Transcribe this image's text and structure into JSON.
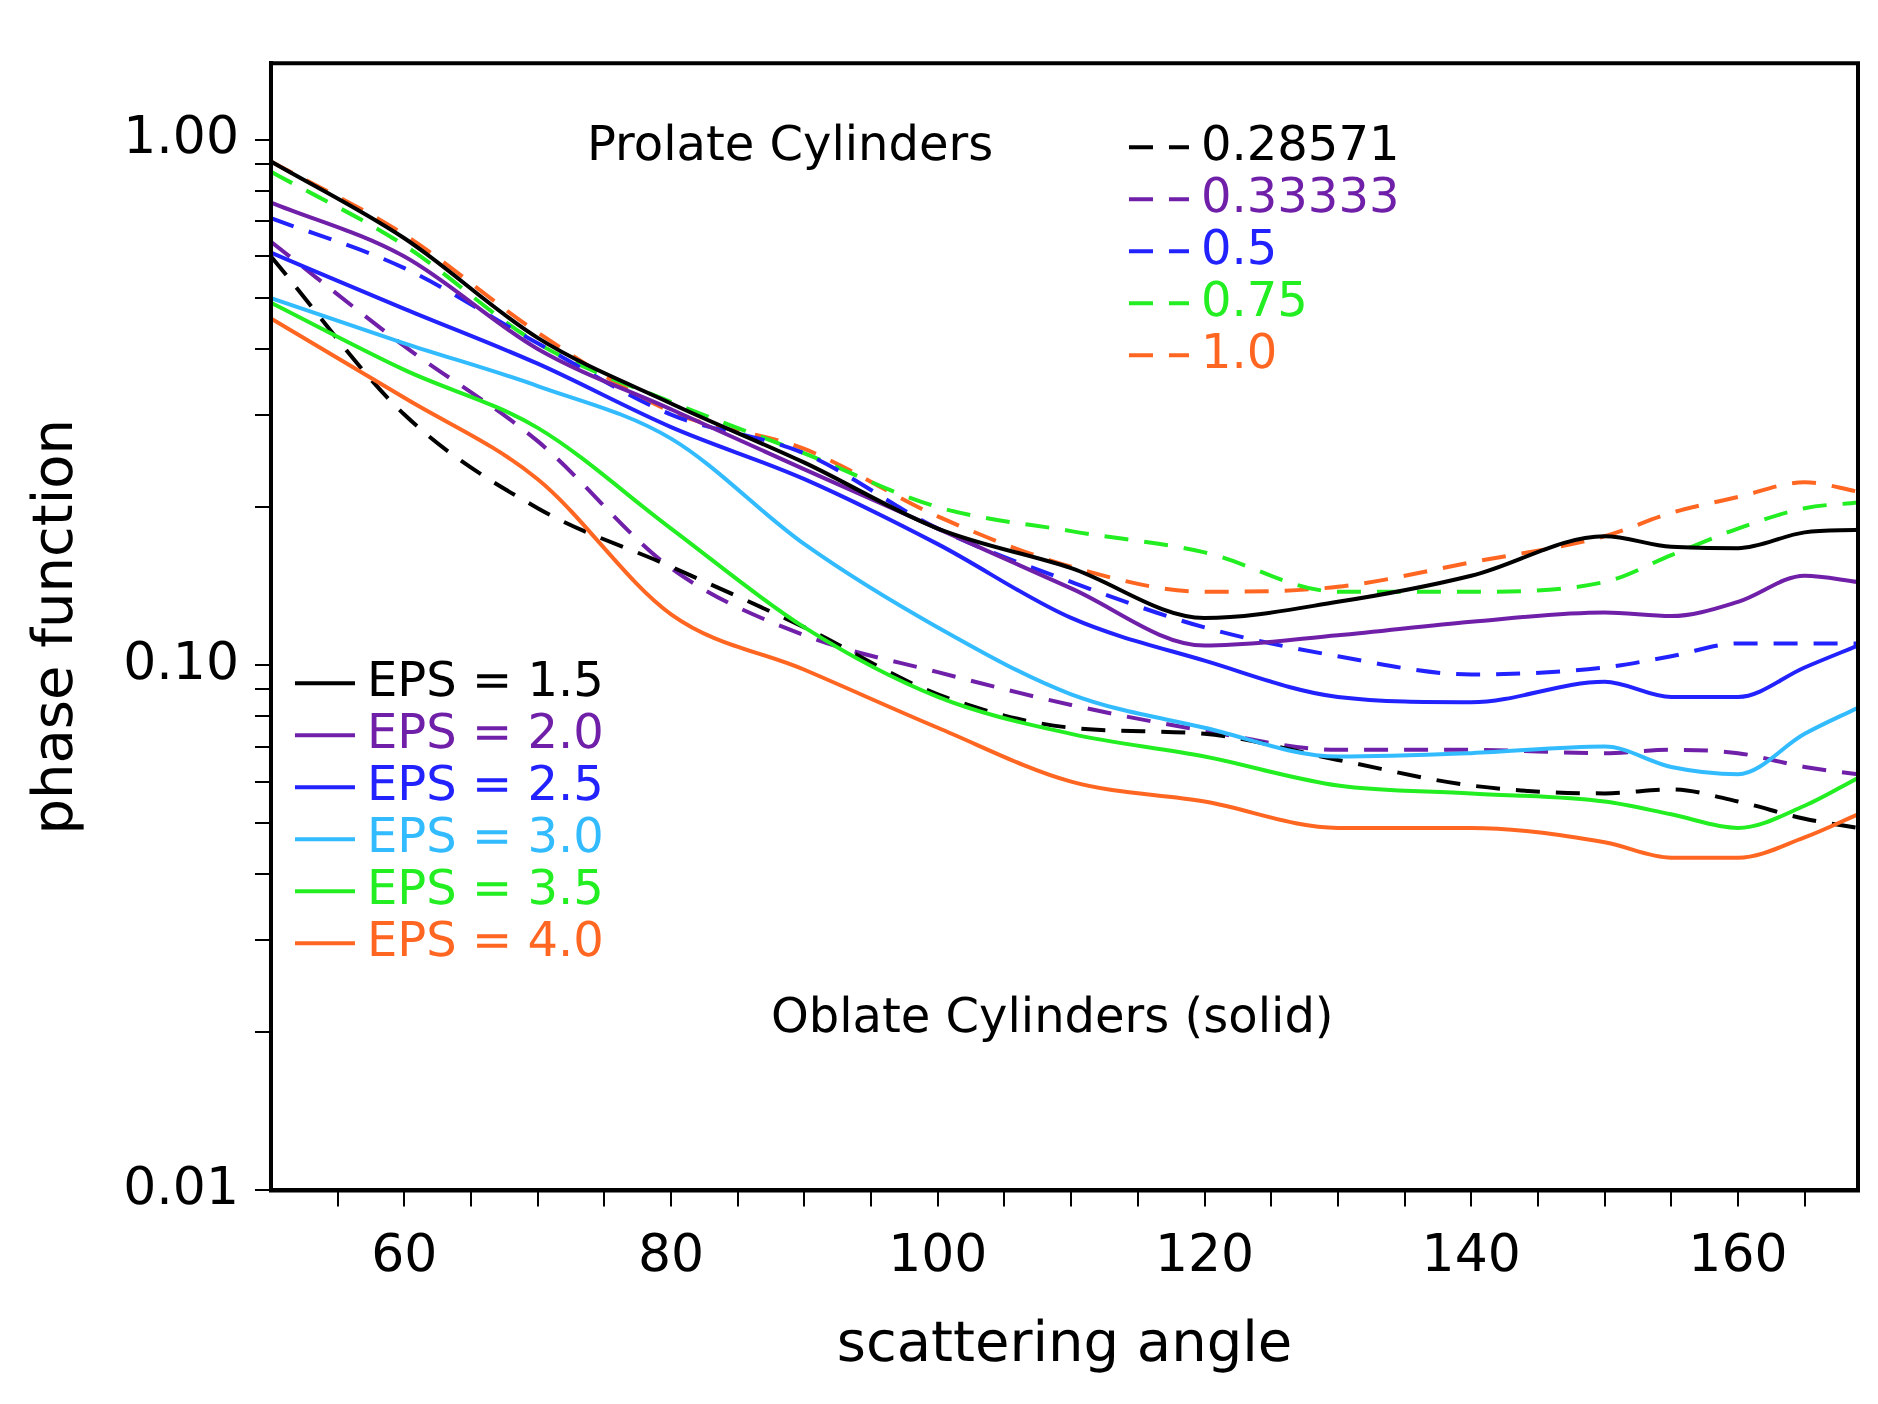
{
  "chart_data": {
    "type": "line",
    "xlabel": "scattering angle",
    "ylabel": "phase function",
    "x": [
      50,
      60,
      70,
      80,
      90,
      100,
      110,
      120,
      130,
      140,
      150,
      155,
      160,
      165,
      169
    ],
    "series": [
      {
        "name": "EPS = 1.5",
        "color": "#000000",
        "line_style": "solid",
        "values": [
          0.91,
          0.65,
          0.42,
          0.315,
          0.243,
          0.182,
          0.153,
          0.123,
          0.132,
          0.148,
          0.176,
          0.168,
          0.167,
          0.179,
          0.181
        ]
      },
      {
        "name": "EPS = 2.0",
        "color": "#7020a8",
        "line_style": "solid",
        "values": [
          0.76,
          0.6,
          0.4,
          0.307,
          0.236,
          0.182,
          0.14,
          0.109,
          0.114,
          0.121,
          0.126,
          0.124,
          0.132,
          0.148,
          0.144
        ]
      },
      {
        "name": "EPS = 2.5",
        "color": "#2222ff",
        "line_style": "solid",
        "values": [
          0.61,
          0.477,
          0.375,
          0.284,
          0.226,
          0.17,
          0.123,
          0.102,
          0.087,
          0.085,
          0.093,
          0.087,
          0.087,
          0.099,
          0.109
        ]
      },
      {
        "name": "EPS = 3.0",
        "color": "#33bbff",
        "line_style": "solid",
        "values": [
          0.5,
          0.41,
          0.34,
          0.27,
          0.17,
          0.118,
          0.088,
          0.076,
          0.067,
          0.068,
          0.07,
          0.064,
          0.062,
          0.074,
          0.083
        ]
      },
      {
        "name": "EPS = 3.5",
        "color": "#22ee22",
        "line_style": "solid",
        "values": [
          0.49,
          0.365,
          0.283,
          0.182,
          0.118,
          0.087,
          0.074,
          0.067,
          0.059,
          0.057,
          0.055,
          0.052,
          0.049,
          0.054,
          0.061
        ]
      },
      {
        "name": "EPS = 4.0",
        "color": "#ff6622",
        "line_style": "solid",
        "values": [
          0.457,
          0.323,
          0.226,
          0.125,
          0.098,
          0.076,
          0.06,
          0.055,
          0.049,
          0.049,
          0.046,
          0.043,
          0.043,
          0.047,
          0.052
        ]
      },
      {
        "name": "0.28571",
        "color": "#000000",
        "line_style": "dashed",
        "values": [
          0.6,
          0.3,
          0.199,
          0.154,
          0.118,
          0.088,
          0.076,
          0.074,
          0.066,
          0.059,
          0.057,
          0.058,
          0.055,
          0.051,
          0.049
        ]
      },
      {
        "name": "0.33333",
        "color": "#7020a8",
        "line_style": "dashed",
        "values": [
          0.64,
          0.405,
          0.267,
          0.153,
          0.114,
          0.097,
          0.084,
          0.075,
          0.069,
          0.069,
          0.068,
          0.069,
          0.068,
          0.064,
          0.062
        ]
      },
      {
        "name": "0.5",
        "color": "#2222ff",
        "line_style": "dashed",
        "values": [
          0.71,
          0.57,
          0.41,
          0.3,
          0.253,
          0.182,
          0.144,
          0.118,
          0.104,
          0.096,
          0.099,
          0.104,
          0.11,
          0.11,
          0.11
        ]
      },
      {
        "name": "0.75",
        "color": "#22ee22",
        "line_style": "dashed",
        "values": [
          0.87,
          0.63,
          0.41,
          0.317,
          0.253,
          0.2,
          0.18,
          0.164,
          0.138,
          0.138,
          0.144,
          0.162,
          0.182,
          0.199,
          0.204
        ]
      },
      {
        "name": "1.0",
        "color": "#ff6622",
        "line_style": "dashed",
        "values": [
          0.91,
          0.66,
          0.43,
          0.304,
          0.258,
          0.192,
          0.154,
          0.138,
          0.141,
          0.157,
          0.176,
          0.195,
          0.209,
          0.223,
          0.214
        ]
      }
    ],
    "annotations": [
      "Prolate Cylinders",
      "Oblate Cylinders (solid)"
    ],
    "log": "y",
    "grid": false,
    "legend": "top",
    "marker": "none",
    "xlim": [
      50,
      169
    ],
    "ylim": [
      0.01,
      1.4
    ],
    "xticks": [
      {
        "value": 55,
        "label": null
      },
      60,
      {
        "value": 65,
        "label": null
      },
      {
        "value": 70,
        "label": null
      },
      {
        "value": 75,
        "label": null
      },
      80,
      {
        "value": 85,
        "label": null
      },
      {
        "value": 90,
        "label": null
      },
      {
        "value": 95,
        "label": null
      },
      100,
      {
        "value": 105,
        "label": null
      },
      {
        "value": 110,
        "label": null
      },
      {
        "value": 115,
        "label": null
      },
      120,
      {
        "value": 125,
        "label": null
      },
      {
        "value": 130,
        "label": null
      },
      {
        "value": 135,
        "label": null
      },
      140,
      {
        "value": 145,
        "label": null
      },
      {
        "value": 150,
        "label": null
      },
      {
        "value": 155,
        "label": null
      },
      160,
      {
        "value": 165,
        "label": null
      }
    ],
    "yticks": [
      {
        "value": 0.01,
        "label": "0.01"
      },
      {
        "value": 0.02,
        "label": null
      },
      {
        "value": 0.03,
        "label": null
      },
      {
        "value": 0.04,
        "label": null
      },
      {
        "value": 0.05,
        "label": null
      },
      {
        "value": 0.06,
        "label": null
      },
      {
        "value": 0.07,
        "label": null
      },
      {
        "value": 0.08,
        "label": null
      },
      {
        "value": 0.09,
        "label": null
      },
      {
        "value": 0.1,
        "label": "0.10"
      },
      {
        "value": 0.2,
        "label": null
      },
      {
        "value": 0.3,
        "label": null
      },
      {
        "value": 0.4,
        "label": null
      },
      {
        "value": 0.5,
        "label": null
      },
      {
        "value": 0.6,
        "label": null
      },
      {
        "value": 0.7,
        "label": null
      },
      {
        "value": 0.8,
        "label": null
      },
      {
        "value": 0.9,
        "label": null
      },
      {
        "value": 1,
        "label": "1.00"
      }
    ]
  }
}
